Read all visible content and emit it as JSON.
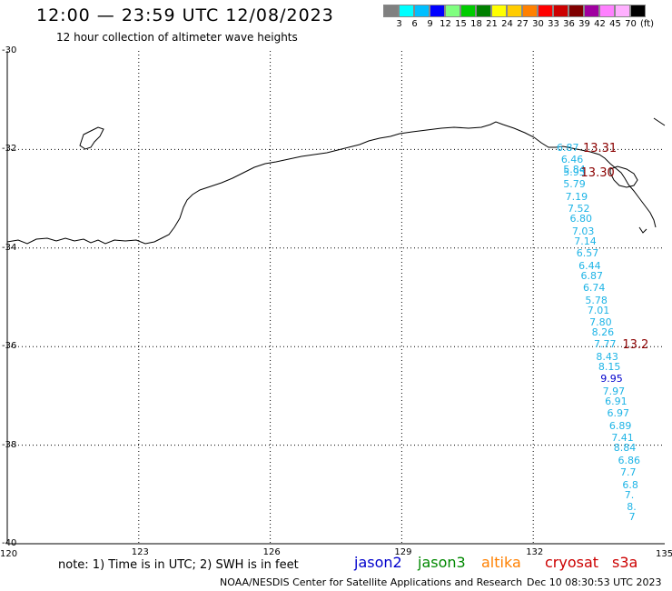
{
  "header": {
    "title": "12:00 — 23:59 UTC 12/08/2023",
    "subtitle": "12 hour collection of altimeter wave heights"
  },
  "legend": {
    "labels": [
      "3",
      "6",
      "9",
      "12",
      "15",
      "18",
      "21",
      "24",
      "27",
      "30",
      "33",
      "36",
      "39",
      "42",
      "45",
      "70"
    ],
    "unit": "(ft)",
    "colors": [
      "#808080",
      "#00ffff",
      "#00bfff",
      "#0000ff",
      "#80ff80",
      "#00cc00",
      "#008000",
      "#ffff00",
      "#ffcc00",
      "#ff8000",
      "#ff0000",
      "#cc0000",
      "#800000",
      "#a000a0",
      "#ff80ff",
      "#ffb0ff",
      "#000000"
    ]
  },
  "axes": {
    "y_labels": [
      "-30",
      "-32",
      "-34",
      "-36",
      "-38",
      "-40"
    ],
    "x_labels": [
      "120",
      "123",
      "126",
      "129",
      "132",
      "135"
    ]
  },
  "footer": {
    "note": "note: 1) Time is in UTC; 2) SWH is in feet",
    "satellites": [
      {
        "name": "jason2",
        "color": "#0000cc"
      },
      {
        "name": "jason3",
        "color": "#008800"
      },
      {
        "name": "altika",
        "color": "#ff8000"
      },
      {
        "name": "cryosat",
        "color": "#cc0000"
      },
      {
        "name": "s3a",
        "color": "#cc0000"
      }
    ],
    "credit": "NOAA/NESDIS Center for Satellite Applications and Research",
    "timestamp": "Dec 10 08:30:53 UTC 2023"
  },
  "wave_readings": [
    {
      "value": "6.87",
      "lon": 132.7,
      "lat": -31.95,
      "color": "#1eb4e6"
    },
    {
      "value": "13.31",
      "lon": 133.3,
      "lat": -31.95,
      "color": "#8b0000"
    },
    {
      "value": "6.46",
      "lon": 132.8,
      "lat": -32.2,
      "color": "#1eb4e6"
    },
    {
      "value": "5.84",
      "lon": 132.85,
      "lat": -32.4,
      "color": "#1eb4e6"
    },
    {
      "value": "5.95",
      "lon": 132.85,
      "lat": -32.45,
      "color": "#1eb4e6"
    },
    {
      "value": "13.30",
      "lon": 133.25,
      "lat": -32.45,
      "color": "#8b0000"
    },
    {
      "value": "5.79",
      "lon": 132.85,
      "lat": -32.7,
      "color": "#1eb4e6"
    },
    {
      "value": "7.19",
      "lon": 132.9,
      "lat": -32.95,
      "color": "#1eb4e6"
    },
    {
      "value": "7.52",
      "lon": 132.95,
      "lat": -33.2,
      "color": "#1eb4e6"
    },
    {
      "value": "6.80",
      "lon": 133.0,
      "lat": -33.4,
      "color": "#1eb4e6"
    },
    {
      "value": "7.03",
      "lon": 133.05,
      "lat": -33.65,
      "color": "#1eb4e6"
    },
    {
      "value": "7.14",
      "lon": 133.1,
      "lat": -33.85,
      "color": "#1eb4e6"
    },
    {
      "value": "6.57",
      "lon": 133.15,
      "lat": -34.1,
      "color": "#1eb4e6"
    },
    {
      "value": "6.44",
      "lon": 133.2,
      "lat": -34.35,
      "color": "#1eb4e6"
    },
    {
      "value": "6.87",
      "lon": 133.25,
      "lat": -34.55,
      "color": "#1eb4e6"
    },
    {
      "value": "6.74",
      "lon": 133.3,
      "lat": -34.8,
      "color": "#1eb4e6"
    },
    {
      "value": "5.78",
      "lon": 133.35,
      "lat": -35.05,
      "color": "#1eb4e6"
    },
    {
      "value": "7.01",
      "lon": 133.4,
      "lat": -35.25,
      "color": "#1eb4e6"
    },
    {
      "value": "7.80",
      "lon": 133.45,
      "lat": -35.5,
      "color": "#1eb4e6"
    },
    {
      "value": "8.26",
      "lon": 133.5,
      "lat": -35.7,
      "color": "#1eb4e6"
    },
    {
      "value": "7.77",
      "lon": 133.55,
      "lat": -35.95,
      "color": "#1eb4e6"
    },
    {
      "value": "13.2",
      "lon": 134.2,
      "lat": -35.95,
      "color": "#8b0000"
    },
    {
      "value": "8.43",
      "lon": 133.6,
      "lat": -36.2,
      "color": "#1eb4e6"
    },
    {
      "value": "8.15",
      "lon": 133.65,
      "lat": -36.4,
      "color": "#1eb4e6"
    },
    {
      "value": "9.95",
      "lon": 133.7,
      "lat": -36.65,
      "color": "#0000cc"
    },
    {
      "value": "7.97",
      "lon": 133.75,
      "lat": -36.9,
      "color": "#1eb4e6"
    },
    {
      "value": "6.91",
      "lon": 133.8,
      "lat": -37.1,
      "color": "#1eb4e6"
    },
    {
      "value": "6.97",
      "lon": 133.85,
      "lat": -37.35,
      "color": "#1eb4e6"
    },
    {
      "value": "6.89",
      "lon": 133.9,
      "lat": -37.6,
      "color": "#1eb4e6"
    },
    {
      "value": "7.41",
      "lon": 133.95,
      "lat": -37.85,
      "color": "#1eb4e6"
    },
    {
      "value": "8.84",
      "lon": 134.0,
      "lat": -38.05,
      "color": "#1eb4e6"
    },
    {
      "value": "6.86",
      "lon": 134.1,
      "lat": -38.3,
      "color": "#1eb4e6"
    },
    {
      "value": "7.7",
      "lon": 134.15,
      "lat": -38.55,
      "color": "#1eb4e6"
    },
    {
      "value": "6.8",
      "lon": 134.2,
      "lat": -38.8,
      "color": "#1eb4e6"
    },
    {
      "value": "7.",
      "lon": 134.25,
      "lat": -39.0,
      "color": "#1eb4e6"
    },
    {
      "value": "8.",
      "lon": 134.3,
      "lat": -39.25,
      "color": "#1eb4e6"
    },
    {
      "value": "7",
      "lon": 134.35,
      "lat": -39.45,
      "color": "#1eb4e6"
    }
  ]
}
